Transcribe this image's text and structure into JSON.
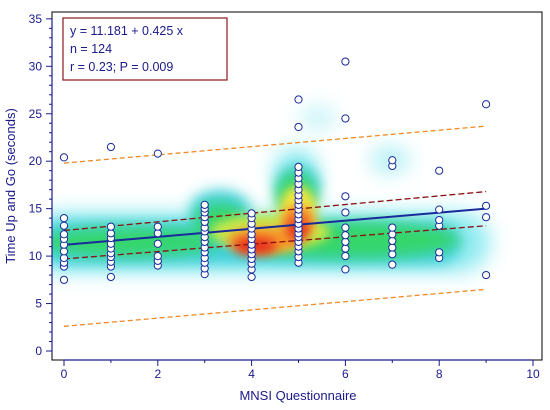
{
  "chart_data": {
    "type": "scatter",
    "xlabel": "MNSI Questionnaire",
    "ylabel": "Time Up and Go (seconds)",
    "xlim": [
      0,
      10
    ],
    "ylim": [
      0,
      35
    ],
    "xticks": [
      "0",
      "2",
      "4",
      "6",
      "8",
      "10"
    ],
    "yticks": [
      "0",
      "5",
      "10",
      "15",
      "20",
      "25",
      "30",
      "35"
    ],
    "annotation": [
      "y = 11.181 + 0.425 x",
      "n = 124",
      "r = 0.23; P = 0.009"
    ],
    "regression": {
      "intercept": 11.181,
      "slope": 0.425
    },
    "confidence_band": {
      "upper": [
        [
          0,
          12.7
        ],
        [
          9,
          16.8
        ]
      ],
      "lower": [
        [
          0,
          9.7
        ],
        [
          9,
          13.2
        ]
      ]
    },
    "prediction_band": {
      "upper": [
        [
          0,
          19.8
        ],
        [
          9,
          23.7
        ]
      ],
      "lower": [
        [
          0,
          2.6
        ],
        [
          9,
          6.5
        ]
      ]
    },
    "points": [
      [
        0,
        7.5
      ],
      [
        0,
        8.9
      ],
      [
        0,
        9.3
      ],
      [
        0,
        9.8
      ],
      [
        0,
        10.5
      ],
      [
        0,
        11.2
      ],
      [
        0,
        11.8
      ],
      [
        0,
        12.3
      ],
      [
        0,
        13.2
      ],
      [
        0,
        14.0
      ],
      [
        0,
        20.4
      ],
      [
        1,
        7.8
      ],
      [
        1,
        8.9
      ],
      [
        1,
        9.4
      ],
      [
        1,
        9.9
      ],
      [
        1,
        10.3
      ],
      [
        1,
        10.8
      ],
      [
        1,
        11.3
      ],
      [
        1,
        11.9
      ],
      [
        1,
        12.4
      ],
      [
        1,
        13.1
      ],
      [
        1,
        21.5
      ],
      [
        2,
        9.0
      ],
      [
        2,
        9.5
      ],
      [
        2,
        10.0
      ],
      [
        2,
        11.3
      ],
      [
        2,
        12.4
      ],
      [
        2,
        13.1
      ],
      [
        2,
        20.8
      ],
      [
        3,
        8.1
      ],
      [
        3,
        8.7
      ],
      [
        3,
        9.3
      ],
      [
        3,
        9.8
      ],
      [
        3,
        10.4
      ],
      [
        3,
        10.9
      ],
      [
        3,
        11.5
      ],
      [
        3,
        12.0
      ],
      [
        3,
        12.6
      ],
      [
        3,
        13.0
      ],
      [
        3,
        13.6
      ],
      [
        3,
        14.1
      ],
      [
        3,
        14.6
      ],
      [
        3,
        15.0
      ],
      [
        3,
        15.4
      ],
      [
        4,
        7.8
      ],
      [
        4,
        8.6
      ],
      [
        4,
        9.2
      ],
      [
        4,
        9.7
      ],
      [
        4,
        10.2
      ],
      [
        4,
        10.7
      ],
      [
        4,
        11.2
      ],
      [
        4,
        11.8
      ],
      [
        4,
        12.3
      ],
      [
        4,
        12.9
      ],
      [
        4,
        13.4
      ],
      [
        4,
        14.0
      ],
      [
        4,
        14.5
      ],
      [
        5,
        9.3
      ],
      [
        5,
        9.9
      ],
      [
        5,
        10.5
      ],
      [
        5,
        11.0
      ],
      [
        5,
        11.5
      ],
      [
        5,
        12.0
      ],
      [
        5,
        12.4
      ],
      [
        5,
        12.9
      ],
      [
        5,
        13.4
      ],
      [
        5,
        13.9
      ],
      [
        5,
        14.4
      ],
      [
        5,
        14.9
      ],
      [
        5,
        15.4
      ],
      [
        5,
        15.9
      ],
      [
        5,
        16.4
      ],
      [
        5,
        17.0
      ],
      [
        5,
        17.6
      ],
      [
        5,
        18.2
      ],
      [
        5,
        18.8
      ],
      [
        5,
        19.4
      ],
      [
        5,
        23.6
      ],
      [
        5,
        26.5
      ],
      [
        6,
        8.6
      ],
      [
        6,
        10.0
      ],
      [
        6,
        10.8
      ],
      [
        6,
        11.5
      ],
      [
        6,
        12.2
      ],
      [
        6,
        13.0
      ],
      [
        6,
        14.6
      ],
      [
        6,
        16.3
      ],
      [
        6,
        24.5
      ],
      [
        6,
        30.5
      ],
      [
        7,
        9.1
      ],
      [
        7,
        10.2
      ],
      [
        7,
        10.9
      ],
      [
        7,
        11.6
      ],
      [
        7,
        12.3
      ],
      [
        7,
        13.0
      ],
      [
        7,
        19.5
      ],
      [
        7,
        20.1
      ],
      [
        8,
        9.8
      ],
      [
        8,
        10.4
      ],
      [
        8,
        13.2
      ],
      [
        8,
        13.8
      ],
      [
        8,
        14.9
      ],
      [
        8,
        19.0
      ],
      [
        9,
        8.0
      ],
      [
        9,
        14.1
      ],
      [
        9,
        15.3
      ],
      [
        9,
        26.0
      ]
    ]
  }
}
